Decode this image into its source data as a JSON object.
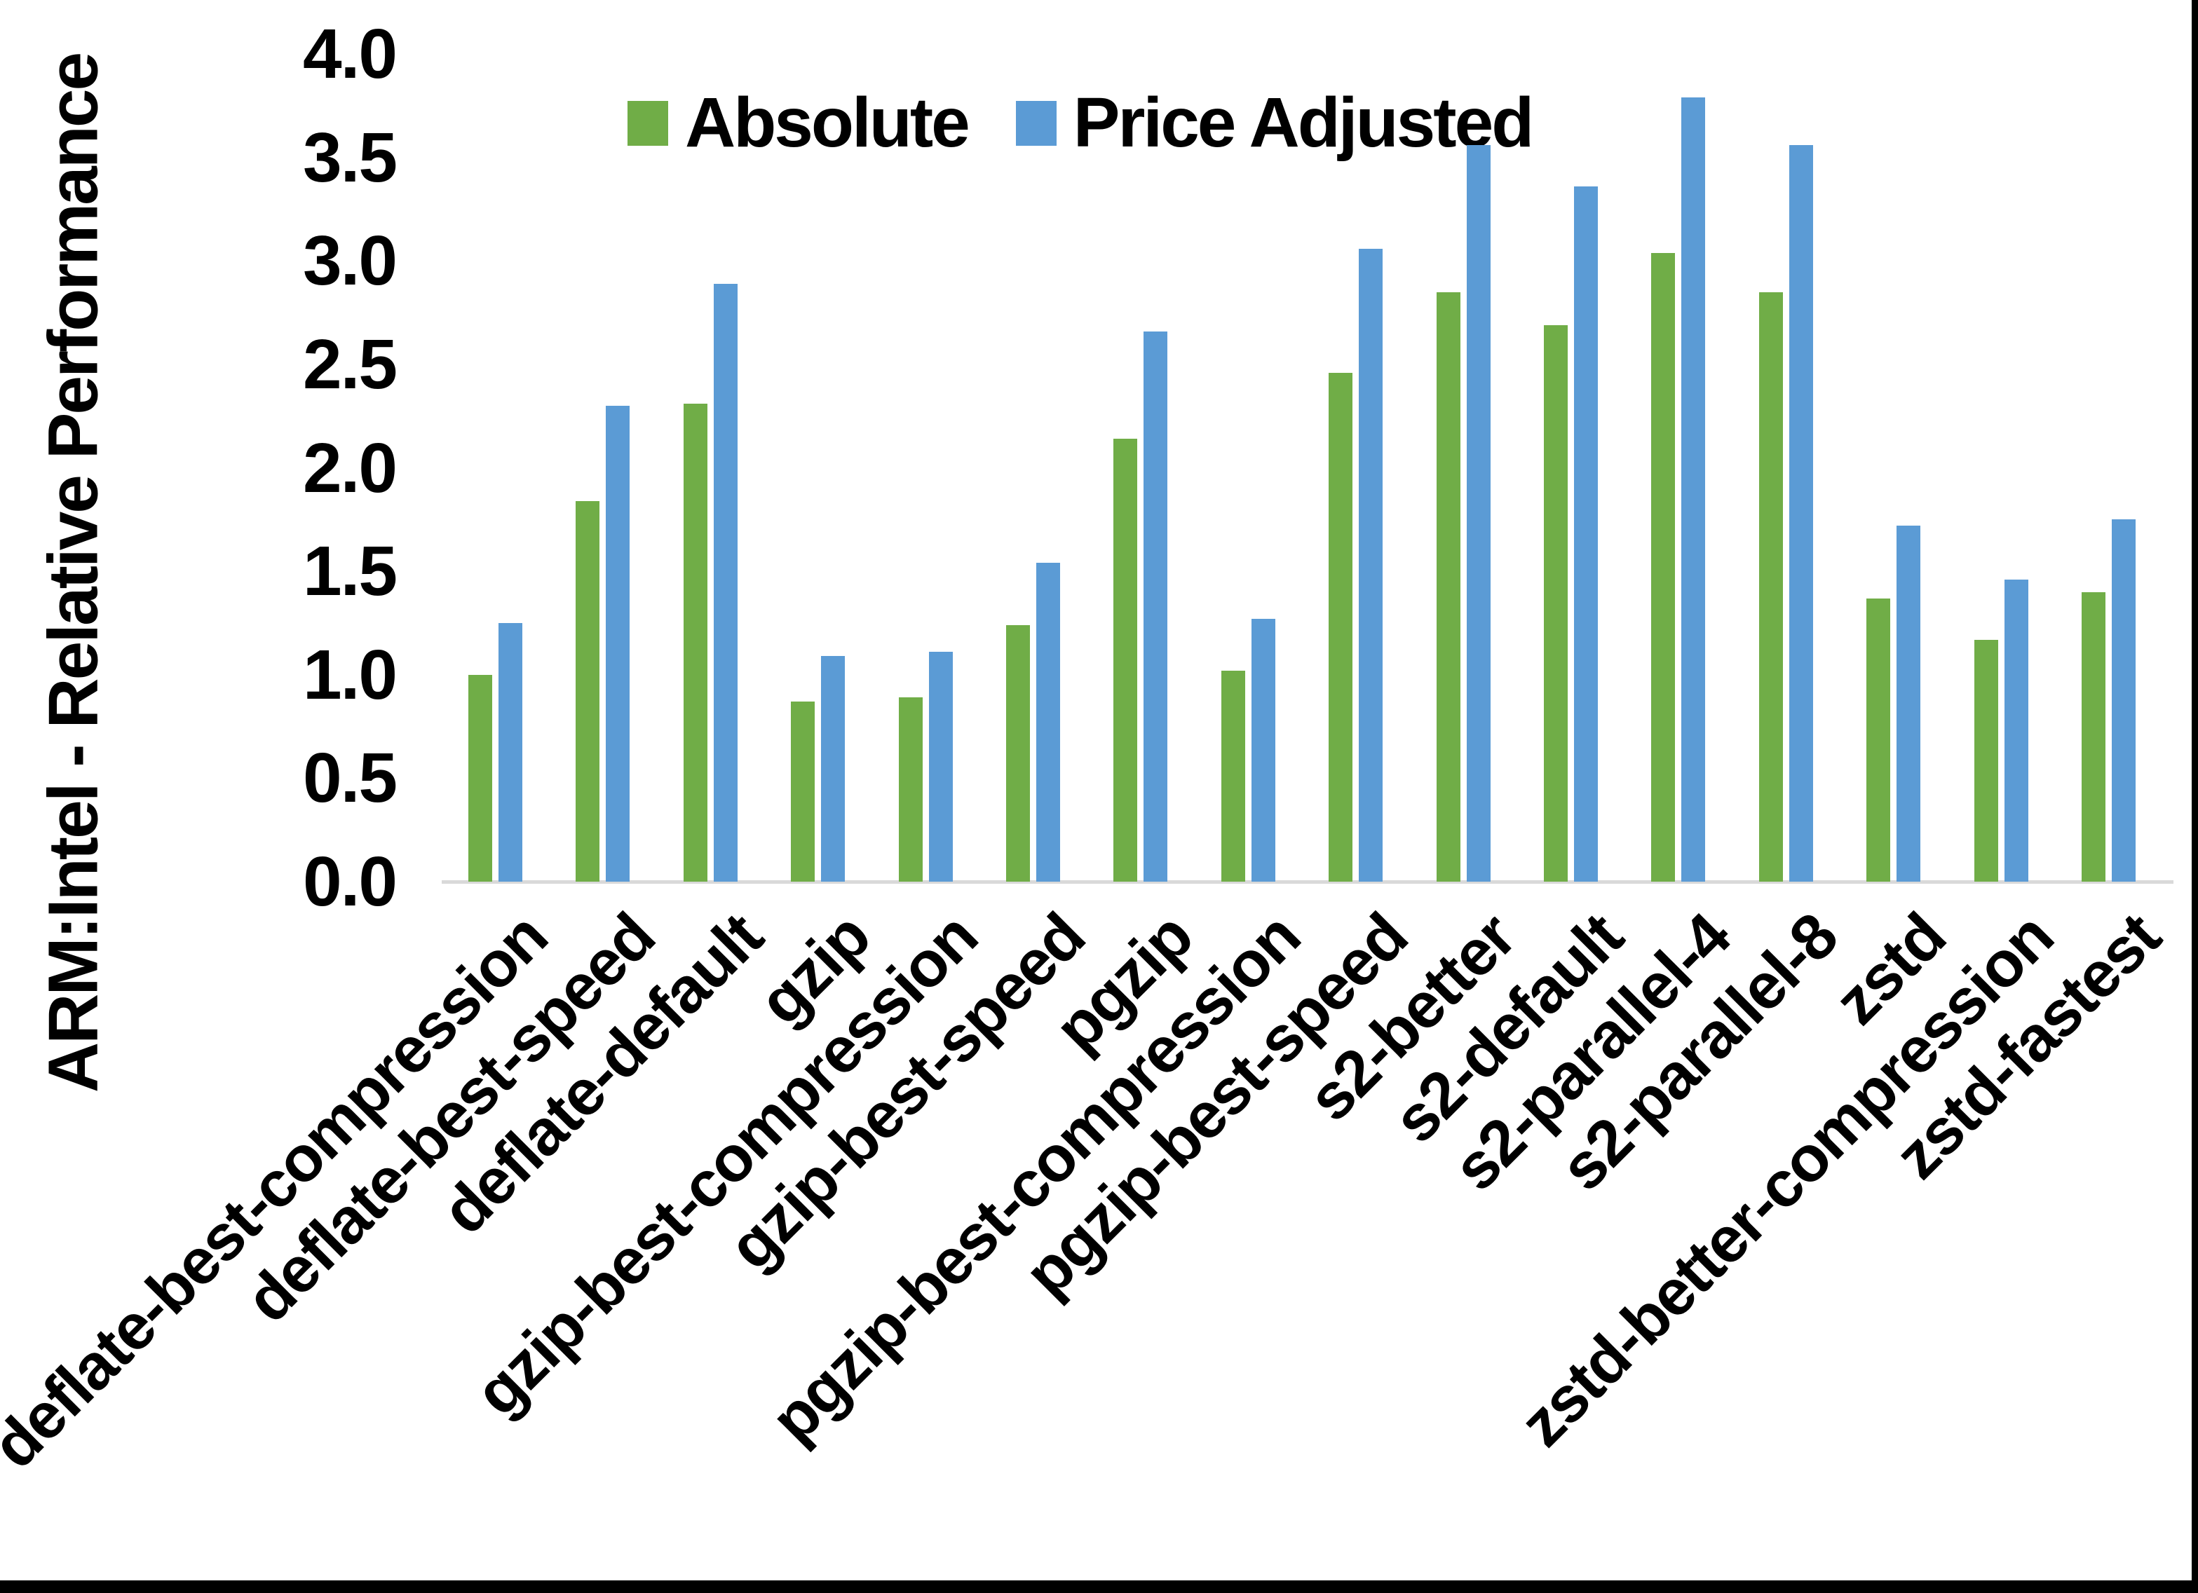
{
  "colors": {
    "absolute_green": "#70AD47",
    "price_adjusted_blue": "#5B9BD5",
    "axis_line_gray": "#D9D9D9",
    "text_black": "#000000",
    "frame_black": "#000000",
    "background": "#FFFFFF"
  },
  "y_axis": {
    "title": "ARM:Intel - Relative Performance",
    "ticks": [
      "4.0",
      "3.5",
      "3.0",
      "2.5",
      "2.0",
      "1.5",
      "1.0",
      "0.5",
      "0.0"
    ]
  },
  "legend": {
    "items": [
      {
        "label": "Absolute",
        "color": "#70AD47"
      },
      {
        "label": "Price Adjusted",
        "color": "#5B9BD5"
      }
    ]
  },
  "chart_data": {
    "type": "bar",
    "title": "",
    "xlabel": "",
    "ylabel": "ARM:Intel - Relative Performance",
    "ylim": [
      0.0,
      4.0
    ],
    "ytick_step": 0.5,
    "grid": false,
    "legend_position": "top-center",
    "categories": [
      "deflate-best-compression",
      "deflate-best-speed",
      "deflate-default",
      "gzip",
      "gzip-best-compression",
      "gzip-best-speed",
      "pgzip",
      "pgzip-best-compression",
      "pgzip-best-speed",
      "s2-better",
      "s2-default",
      "s2-parallel-4",
      "s2-parallel-8",
      "zstd",
      "zstd-better-compression",
      "zstd-fastest"
    ],
    "series": [
      {
        "name": "Absolute",
        "color": "#70AD47",
        "values": [
          1.0,
          1.84,
          2.31,
          0.87,
          0.89,
          1.24,
          2.14,
          1.02,
          2.46,
          2.85,
          2.69,
          3.04,
          2.85,
          1.37,
          1.17,
          1.4
        ]
      },
      {
        "name": "Price Adjusted",
        "color": "#5B9BD5",
        "values": [
          1.25,
          2.3,
          2.89,
          1.09,
          1.11,
          1.54,
          2.66,
          1.27,
          3.06,
          3.56,
          3.36,
          3.79,
          3.56,
          1.72,
          1.46,
          1.75
        ]
      }
    ]
  }
}
